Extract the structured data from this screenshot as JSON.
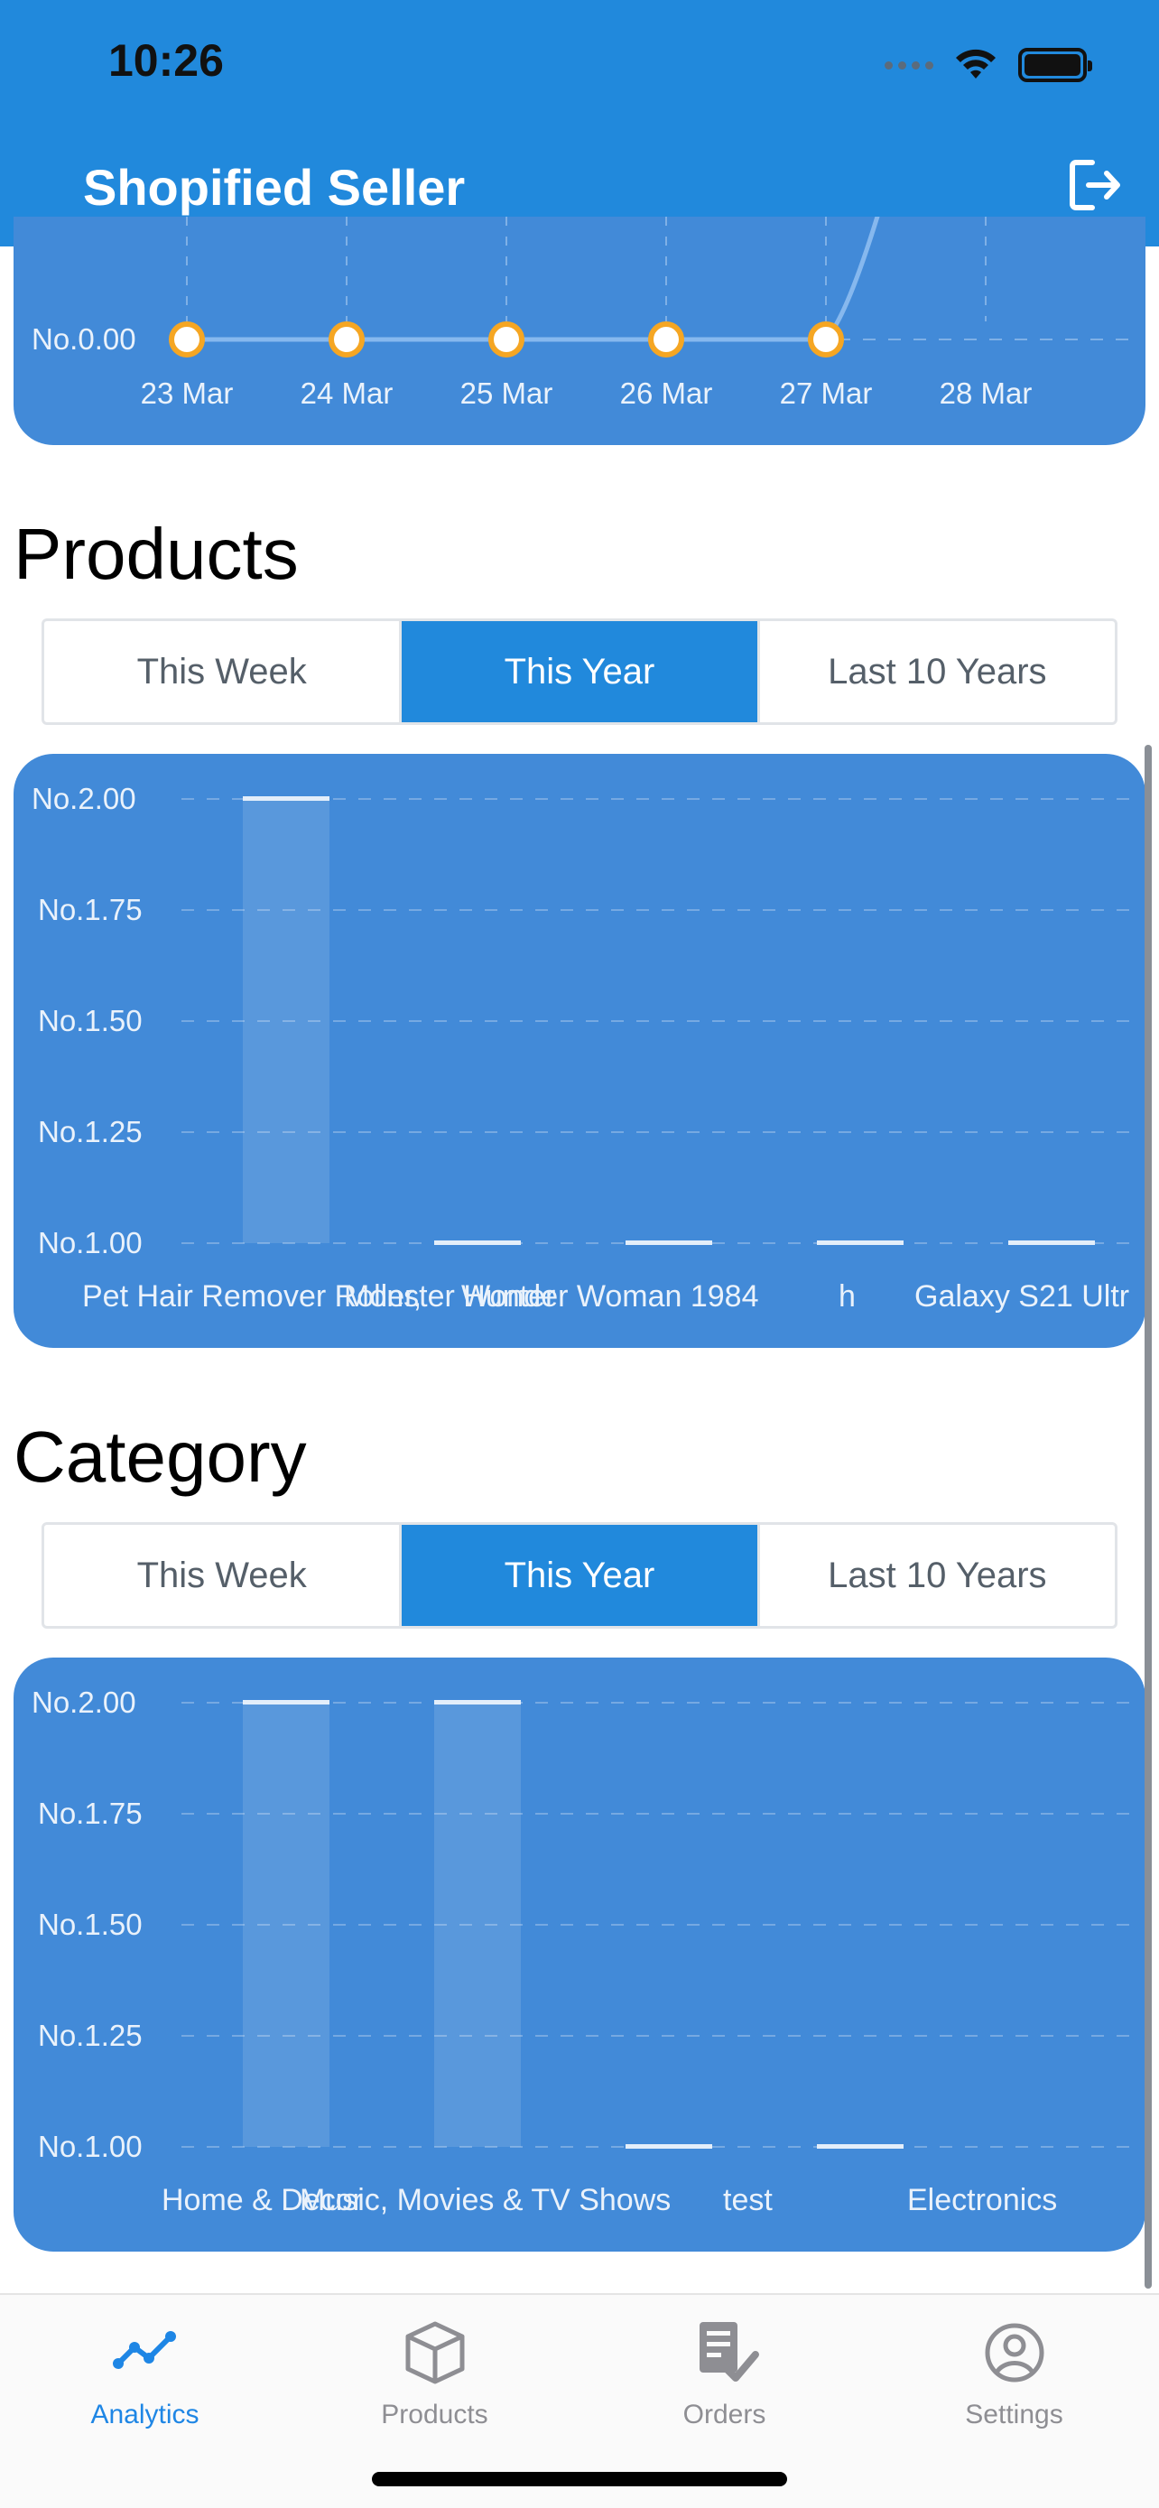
{
  "status_bar": {
    "time": "10:26"
  },
  "header": {
    "title": "Shopified Seller",
    "logout_icon": "logout-icon",
    "background": "#2189dc"
  },
  "sales_chart": {
    "chart_data": {
      "type": "line",
      "x": [
        "23 Mar",
        "24 Mar",
        "25 Mar",
        "26 Mar",
        "27 Mar",
        "28 Mar"
      ],
      "values": [
        0,
        0,
        0,
        0,
        0,
        null
      ],
      "ytick_visible": "No.0.00",
      "point_color": "#f5a623"
    }
  },
  "products": {
    "title": "Products",
    "segments": [
      {
        "label": "This Week",
        "active": false
      },
      {
        "label": "This Year",
        "active": true
      },
      {
        "label": "Last 10 Years",
        "active": false
      }
    ],
    "chart_data": {
      "type": "bar",
      "categories": [
        "Pet Hair Remover Roller,",
        "Monster Hunter",
        "Wonder Woman 1984",
        "h",
        "Galaxy S21 Ultr"
      ],
      "values": [
        2,
        1,
        1,
        1,
        1
      ],
      "yticks": [
        "No.2.00",
        "No.1.75",
        "No.1.50",
        "No.1.25",
        "No.1.00"
      ],
      "ylim": [
        1,
        2
      ]
    }
  },
  "category": {
    "title": "Category",
    "segments": [
      {
        "label": "This Week",
        "active": false
      },
      {
        "label": "This Year",
        "active": true
      },
      {
        "label": "Last 10 Years",
        "active": false
      }
    ],
    "chart_data": {
      "type": "bar",
      "categories": [
        "Home & Decor",
        "Music, Movies & TV Shows",
        "test",
        "Electronics"
      ],
      "values": [
        2,
        2,
        1,
        1
      ],
      "yticks": [
        "No.2.00",
        "No.1.75",
        "No.1.50",
        "No.1.25",
        "No.1.00"
      ],
      "ylim": [
        1,
        2
      ]
    }
  },
  "tabbar": {
    "items": [
      {
        "label": "Analytics",
        "icon": "analytics-icon",
        "active": true
      },
      {
        "label": "Products",
        "icon": "box-icon",
        "active": false
      },
      {
        "label": "Orders",
        "icon": "orders-icon",
        "active": false
      },
      {
        "label": "Settings",
        "icon": "user-circle-icon",
        "active": false
      }
    ],
    "active_color": "#1e86e5",
    "inactive_color": "#8e8e93"
  }
}
